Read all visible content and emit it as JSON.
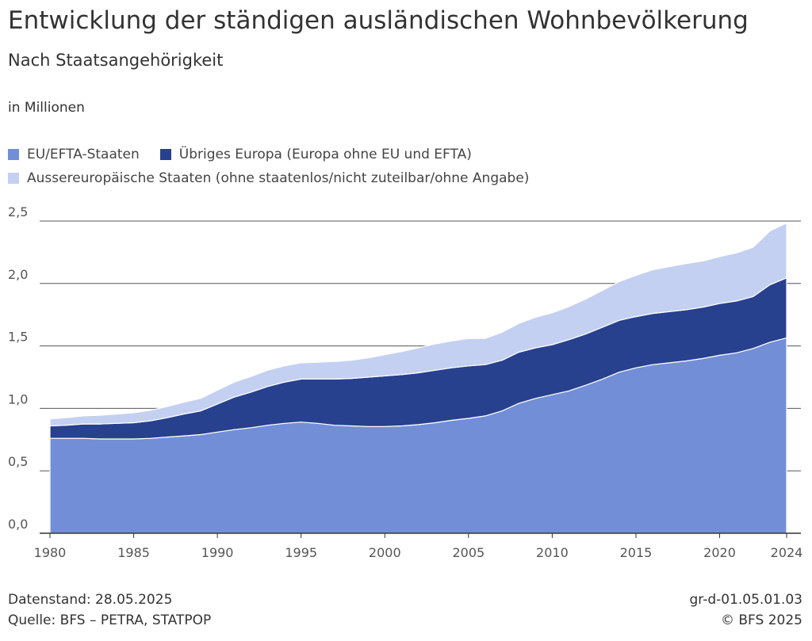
{
  "header": {
    "title": "Entwicklung der ständigen ausländischen Wohnbevölkerung",
    "subtitle": "Nach Staatsangehörigkeit",
    "unit": "in Millionen"
  },
  "footer": {
    "datenstand": "Datenstand: 28.05.2025",
    "quelle": "Quelle: BFS – PETRA, STATPOP",
    "code": "gr-d-01.05.01.03",
    "copyright": "© BFS 2025"
  },
  "chart_data": {
    "type": "area",
    "stacked": true,
    "title": "Entwicklung der ständigen ausländischen Wohnbevölkerung",
    "subtitle": "Nach Staatsangehörigkeit",
    "ylabel": "in Millionen",
    "ylim": [
      0,
      2.5
    ],
    "xlim": [
      1980,
      2024
    ],
    "y_ticks": [
      0.0,
      0.5,
      1.0,
      1.5,
      2.0,
      2.5
    ],
    "y_tick_labels": [
      "0,0",
      "0,5",
      "1,0",
      "1,5",
      "2,0",
      "2,5"
    ],
    "x_ticks": [
      1980,
      1985,
      1990,
      1995,
      2000,
      2005,
      2010,
      2015,
      2020,
      2024
    ],
    "grid": "horizontal",
    "legend_position": "top-left",
    "colors": {
      "eu_efta": "#728ed6",
      "uebriges_europa": "#28418e",
      "aussereuropa": "#c4d0f1",
      "gridline": "#555555",
      "axis": "#333333"
    },
    "x": [
      1980,
      1981,
      1982,
      1983,
      1984,
      1985,
      1986,
      1987,
      1988,
      1989,
      1990,
      1991,
      1992,
      1993,
      1994,
      1995,
      1996,
      1997,
      1998,
      1999,
      2000,
      2001,
      2002,
      2003,
      2004,
      2005,
      2006,
      2007,
      2008,
      2009,
      2010,
      2011,
      2012,
      2013,
      2014,
      2015,
      2016,
      2017,
      2018,
      2019,
      2020,
      2021,
      2022,
      2023,
      2024
    ],
    "series": [
      {
        "name": "EU/EFTA-Staaten",
        "color": "#728ed6",
        "values": [
          0.76,
          0.76,
          0.76,
          0.755,
          0.755,
          0.755,
          0.76,
          0.77,
          0.78,
          0.79,
          0.81,
          0.83,
          0.845,
          0.865,
          0.88,
          0.89,
          0.88,
          0.865,
          0.86,
          0.855,
          0.855,
          0.86,
          0.87,
          0.885,
          0.905,
          0.92,
          0.94,
          0.98,
          1.04,
          1.08,
          1.11,
          1.14,
          1.185,
          1.235,
          1.29,
          1.325,
          1.35,
          1.365,
          1.38,
          1.4,
          1.425,
          1.445,
          1.48,
          1.53,
          1.565
        ]
      },
      {
        "name": "Übriges Europa (Europa ohne EU und EFTA)",
        "color": "#28418e",
        "values": [
          0.1,
          0.105,
          0.115,
          0.12,
          0.125,
          0.13,
          0.14,
          0.155,
          0.175,
          0.19,
          0.225,
          0.26,
          0.285,
          0.31,
          0.33,
          0.345,
          0.355,
          0.37,
          0.38,
          0.395,
          0.405,
          0.41,
          0.415,
          0.42,
          0.42,
          0.42,
          0.41,
          0.405,
          0.41,
          0.405,
          0.4,
          0.41,
          0.41,
          0.415,
          0.415,
          0.41,
          0.41,
          0.41,
          0.41,
          0.41,
          0.415,
          0.415,
          0.415,
          0.46,
          0.48
        ]
      },
      {
        "name": "Aussereuropäische Staaten (ohne staatenlos/nicht zuteilbar/ohne Angabe)",
        "color": "#c4d0f1",
        "values": [
          0.055,
          0.06,
          0.065,
          0.07,
          0.075,
          0.08,
          0.085,
          0.09,
          0.095,
          0.1,
          0.11,
          0.12,
          0.125,
          0.13,
          0.13,
          0.13,
          0.135,
          0.14,
          0.145,
          0.155,
          0.17,
          0.185,
          0.2,
          0.21,
          0.215,
          0.22,
          0.21,
          0.225,
          0.23,
          0.245,
          0.255,
          0.265,
          0.28,
          0.295,
          0.31,
          0.33,
          0.35,
          0.36,
          0.37,
          0.37,
          0.375,
          0.385,
          0.395,
          0.43,
          0.44
        ]
      }
    ]
  }
}
